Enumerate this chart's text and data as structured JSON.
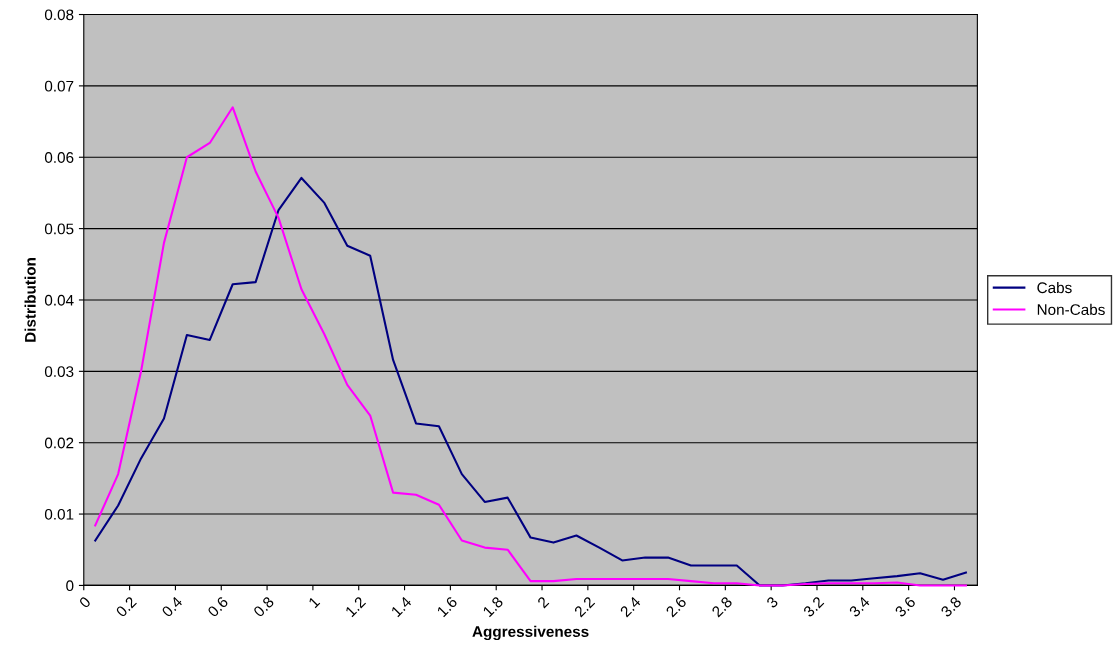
{
  "chart_data": {
    "type": "line",
    "xlabel": "Aggressiveness",
    "ylabel": "Distribution",
    "x": [
      0.05,
      0.15,
      0.25,
      0.35,
      0.45,
      0.55,
      0.65,
      0.75,
      0.85,
      0.95,
      1.05,
      1.15,
      1.25,
      1.35,
      1.45,
      1.55,
      1.65,
      1.75,
      1.85,
      1.95,
      2.05,
      2.15,
      2.25,
      2.35,
      2.45,
      2.55,
      2.65,
      2.75,
      2.85,
      2.95,
      3.05,
      3.15,
      3.25,
      3.35,
      3.45,
      3.55,
      3.65,
      3.75,
      3.85
    ],
    "series": [
      {
        "name": "Cabs",
        "color": "#000080",
        "values": [
          0.0063,
          0.0112,
          0.0178,
          0.0234,
          0.0351,
          0.0344,
          0.0422,
          0.0425,
          0.0526,
          0.0571,
          0.0536,
          0.0476,
          0.0462,
          0.0316,
          0.0227,
          0.0223,
          0.0156,
          0.0117,
          0.0123,
          0.0067,
          0.006,
          0.007,
          0.0053,
          0.0035,
          0.0039,
          0.0039,
          0.0028,
          0.0028,
          0.0028,
          0,
          0,
          0.0003,
          0.0007,
          0.0007,
          0.001,
          0.0013,
          0.0017,
          0.0008,
          0.0018
        ]
      },
      {
        "name": "Non-Cabs",
        "color": "#ff00ff",
        "values": [
          0.0084,
          0.0156,
          0.03,
          0.048,
          0.06,
          0.062,
          0.067,
          0.058,
          0.0515,
          0.0415,
          0.0352,
          0.0281,
          0.0238,
          0.013,
          0.0127,
          0.0113,
          0.0063,
          0.0053,
          0.005,
          0.0006,
          0.0006,
          0.0009,
          0.0009,
          0.0009,
          0.0009,
          0.0009,
          0.0006,
          0.0003,
          0.0003,
          0,
          0,
          0.0002,
          0.0003,
          0.0003,
          0.0003,
          0.0004,
          0,
          0,
          0
        ]
      }
    ],
    "xlim": [
      0,
      3.9
    ],
    "xticks": [
      0,
      0.2,
      0.4,
      0.6,
      0.8,
      1,
      1.2,
      1.4,
      1.6,
      1.8,
      2,
      2.2,
      2.4,
      2.6,
      2.8,
      3,
      3.2,
      3.4,
      3.6,
      3.8
    ],
    "ylim": [
      0,
      0.08
    ],
    "yticks": [
      0,
      0.01,
      0.02,
      0.03,
      0.04,
      0.05,
      0.06,
      0.07,
      0.08
    ],
    "grid": "y",
    "legend": "right",
    "marker": "none",
    "line_style": "solid"
  }
}
